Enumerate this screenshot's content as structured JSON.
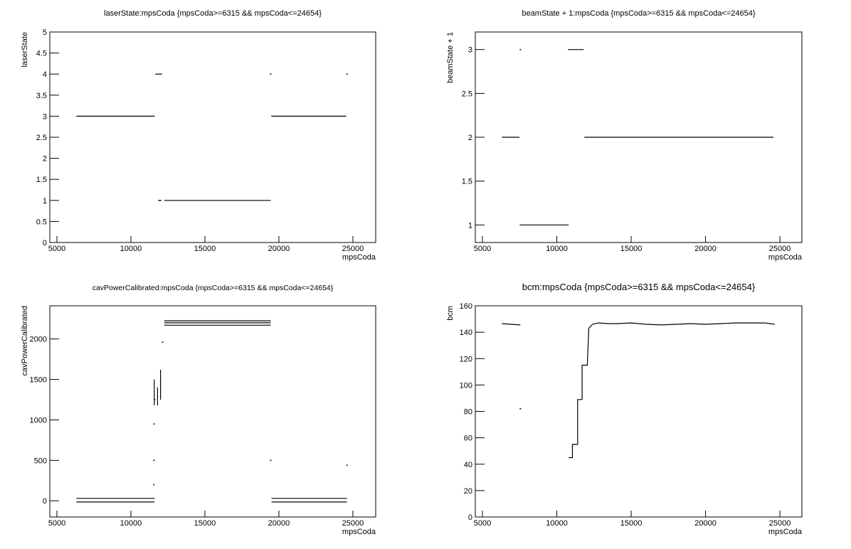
{
  "chart_data": [
    {
      "type": "line",
      "title": "laserState:mpsCoda {mpsCoda>=6315 && mpsCoda<=24654}",
      "x_label": "mpsCoda",
      "y_label": "laserState",
      "color": "#000000",
      "xlim": [
        4520,
        26540
      ],
      "xticks": [
        5000,
        10000,
        15000,
        20000,
        25000
      ],
      "ylim": [
        0,
        5
      ],
      "yticks": [
        0,
        0.5,
        1,
        1.5,
        2,
        2.5,
        3,
        3.5,
        4,
        4.5,
        5
      ],
      "x": [
        6315,
        11600,
        null,
        11650,
        12100,
        null,
        11900,
        null,
        12000,
        null,
        12250,
        19450,
        null,
        19450,
        null,
        19480,
        24550,
        null,
        24600
      ],
      "values": [
        3,
        3,
        null,
        4,
        4,
        null,
        1,
        null,
        1,
        null,
        1,
        1,
        null,
        4,
        null,
        3,
        3,
        null,
        4
      ]
    },
    {
      "type": "line",
      "title": "beamState + 1:mpsCoda {mpsCoda>=6315 && mpsCoda<=24654}",
      "x_label": "mpsCoda",
      "y_label": "beamState + 1",
      "color": "#000000",
      "xlim": [
        4520,
        26480
      ],
      "xticks": [
        5000,
        10000,
        15000,
        20000,
        25000
      ],
      "ylim": [
        0.8,
        3.2
      ],
      "yticks": [
        1,
        1.5,
        2,
        2.5,
        3
      ],
      "x": [
        6315,
        7490,
        null,
        7550,
        null,
        7500,
        10790,
        null,
        10750,
        11800,
        null,
        11850,
        24570
      ],
      "values": [
        2,
        2,
        null,
        3,
        null,
        1,
        1,
        null,
        3,
        3,
        null,
        2,
        2
      ]
    },
    {
      "type": "line",
      "title": "cavPowerCalibrated:mpsCoda {mpsCoda>=6315 && mpsCoda<=24654}",
      "x_label": "mpsCoda",
      "y_label": "cavPowerCalibrated",
      "color": "#000000",
      "xlim": [
        4520,
        26540
      ],
      "xticks": [
        5000,
        10000,
        15000,
        20000,
        25000
      ],
      "ylim": [
        -200,
        2410
      ],
      "yticks": [
        0,
        500,
        1000,
        1500,
        2000
      ],
      "x": [
        6315,
        11600,
        null,
        6315,
        11600,
        null,
        11550,
        null,
        11560,
        null,
        11570,
        null,
        11580,
        11580,
        null,
        11600,
        null,
        11800,
        11800,
        null,
        12000,
        12000,
        null,
        12150,
        null,
        12250,
        19450,
        null,
        12250,
        19450,
        null,
        12250,
        19450,
        null,
        19450,
        null,
        19500,
        24600,
        null,
        19500,
        24600,
        null,
        24600
      ],
      "values": [
        30,
        30,
        null,
        -15,
        -15,
        null,
        200,
        null,
        500,
        null,
        950,
        null,
        1180,
        1500,
        null,
        1250,
        null,
        1180,
        1400,
        null,
        1250,
        1620,
        null,
        1960,
        null,
        2170,
        2170,
        null,
        2200,
        2200,
        null,
        2225,
        2225,
        null,
        500,
        null,
        30,
        30,
        null,
        -15,
        -15,
        null,
        440
      ]
    },
    {
      "type": "line",
      "title": "bcm:mpsCoda {mpsCoda>=6315 && mpsCoda<=24654}",
      "x_label": "mpsCoda",
      "y_label": "bcm",
      "color": "#000000",
      "xlim": [
        4520,
        26480
      ],
      "xticks": [
        5000,
        10000,
        15000,
        20000,
        25000
      ],
      "ylim": [
        0,
        160
      ],
      "yticks": [
        0,
        20,
        40,
        60,
        80,
        100,
        120,
        140,
        160
      ],
      "x": [
        6315,
        6900,
        7550,
        null,
        7550,
        null,
        10800,
        11050,
        11050,
        11400,
        11400,
        11700,
        11700,
        12050,
        12150,
        12400,
        12800,
        13500,
        14000,
        15000,
        16000,
        17000,
        18000,
        19000,
        20000,
        21000,
        22000,
        23000,
        24000,
        24654
      ],
      "values": [
        146.5,
        146,
        145.5,
        null,
        82,
        null,
        45,
        45,
        55,
        55,
        89,
        89,
        115,
        115,
        143,
        146,
        147,
        146.5,
        146.5,
        147,
        146,
        145.5,
        146,
        146.5,
        146,
        146.5,
        147,
        147,
        147,
        146
      ]
    }
  ]
}
